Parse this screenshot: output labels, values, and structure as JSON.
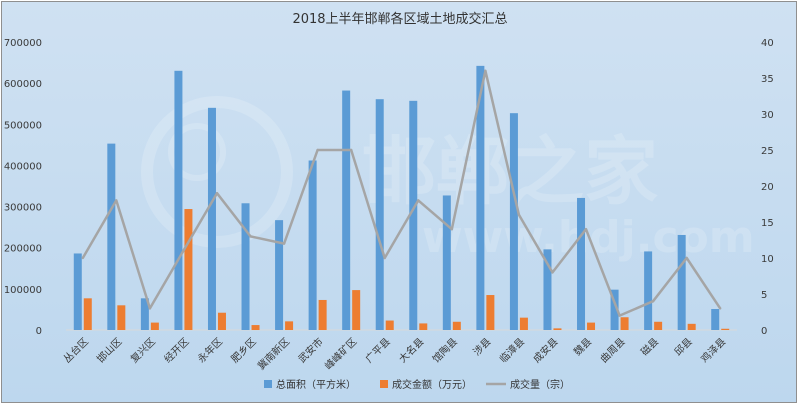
{
  "chart_data": {
    "type": "bar",
    "title": "2018上半年邯郸各区域土地成交汇总",
    "categories": [
      "丛台区",
      "邯山区",
      "复兴区",
      "经开区",
      "永年区",
      "肥乡区",
      "冀南新区",
      "武安市",
      "峰峰矿区",
      "广平县",
      "大名县",
      "馆陶县",
      "涉县",
      "临漳县",
      "成安县",
      "魏县",
      "曲周县",
      "磁县",
      "邱县",
      "鸡泽县"
    ],
    "series": [
      {
        "name": "总面积（平方米）",
        "axis": "left",
        "kind": "bar",
        "color": "#5b9bd5",
        "values": [
          186000,
          453000,
          77000,
          630000,
          540000,
          308000,
          267000,
          412000,
          582000,
          561000,
          557000,
          327000,
          642000,
          527000,
          196000,
          321000,
          98000,
          191000,
          231000,
          51000
        ]
      },
      {
        "name": "成交金额（万元）",
        "axis": "left",
        "kind": "bar",
        "color": "#ed7d31",
        "values": [
          77000,
          60000,
          18000,
          294000,
          42000,
          12000,
          21000,
          73000,
          97000,
          23000,
          16000,
          20000,
          85000,
          30000,
          4000,
          18000,
          31000,
          20000,
          15000,
          3000
        ]
      },
      {
        "name": "成交量（宗）",
        "axis": "right",
        "kind": "line",
        "color": "#a5a5a5",
        "values": [
          10,
          18,
          3,
          11,
          19,
          13,
          12,
          25,
          25,
          10,
          18,
          14,
          36,
          16,
          8,
          14,
          2,
          4,
          10,
          3
        ]
      }
    ],
    "y_left": {
      "min": 0,
      "max": 700000,
      "ticks": [
        "0",
        "100000",
        "200000",
        "300000",
        "400000",
        "500000",
        "600000",
        "700000"
      ]
    },
    "y_right": {
      "min": 0,
      "max": 40,
      "ticks": [
        "0",
        "5",
        "10",
        "15",
        "20",
        "25",
        "30",
        "35",
        "40"
      ]
    },
    "grid": false,
    "legend_position": "bottom",
    "watermark": {
      "text": "邯郸之家",
      "url": "www.hdj.com"
    }
  }
}
